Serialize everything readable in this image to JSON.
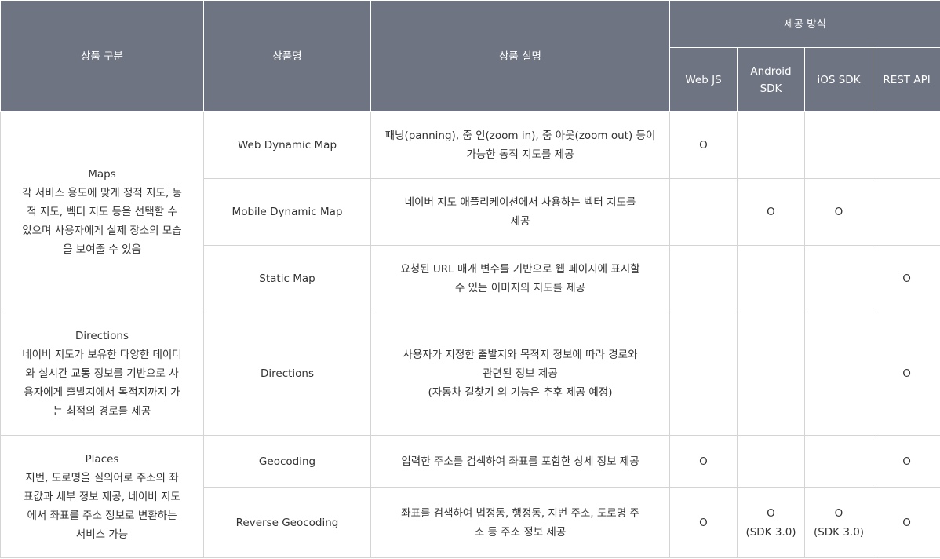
{
  "header": {
    "category": "상품 구분",
    "name": "상품명",
    "description": "상품 설명",
    "provision": "제공 방식",
    "methods": [
      "Web JS",
      "Android\nSDK",
      "iOS SDK",
      "REST API"
    ]
  },
  "groups": [
    {
      "category": "Maps\n각 서비스 용도에 맞게 정적 지도, 동\n적 지도, 벡터 지도 등을 선택할 수\n있으며 사용자에게 실제 장소의 모습\n을 보여줄 수 있음",
      "products": [
        {
          "name": "Web Dynamic Map",
          "description": "패닝(panning), 줌 인(zoom in), 줌 아웃(zoom out) 등이\n가능한 동적 지도를 제공",
          "marks": [
            "O",
            "",
            "",
            ""
          ]
        },
        {
          "name": "Mobile Dynamic Map",
          "description": "네이버 지도 애플리케이션에서 사용하는 벡터 지도를\n제공",
          "marks": [
            "",
            "O",
            "O",
            ""
          ]
        },
        {
          "name": "Static Map",
          "description": "요청된 URL 매개 변수를 기반으로 웹 페이지에 표시할\n수 있는 이미지의 지도를 제공",
          "marks": [
            "",
            "",
            "",
            "O"
          ]
        }
      ]
    },
    {
      "category": "Directions\n네이버 지도가 보유한 다양한 데이터\n와 실시간 교통 정보를 기반으로 사\n용자에게 출발지에서 목적지까지 가\n는 최적의 경로를 제공",
      "products": [
        {
          "name": "Directions",
          "description": "사용자가 지정한 출발지와 목적지 정보에 따라 경로와\n관련된 정보 제공\n(자동차 길찾기 외 기능은 추후 제공 예정)",
          "marks": [
            "",
            "",
            "",
            "O"
          ]
        }
      ]
    },
    {
      "category": "Places\n지번, 도로명을 질의어로 주소의 좌\n표값과 세부 정보 제공, 네이버 지도\n에서 좌표를 주소 정보로 변환하는\n서비스 가능",
      "products": [
        {
          "name": "Geocoding",
          "description": "입력한 주소를 검색하여 좌표를 포함한 상세 정보 제공",
          "marks": [
            "O",
            "",
            "",
            "O"
          ]
        },
        {
          "name": "Reverse Geocoding",
          "description": "좌표를 검색하여 법정동, 행정동, 지번 주소, 도로명 주\n소 등 주소 정보 제공",
          "marks": [
            "O",
            "O\n(SDK 3.0)",
            "O\n(SDK 3.0)",
            "O"
          ]
        }
      ]
    }
  ]
}
